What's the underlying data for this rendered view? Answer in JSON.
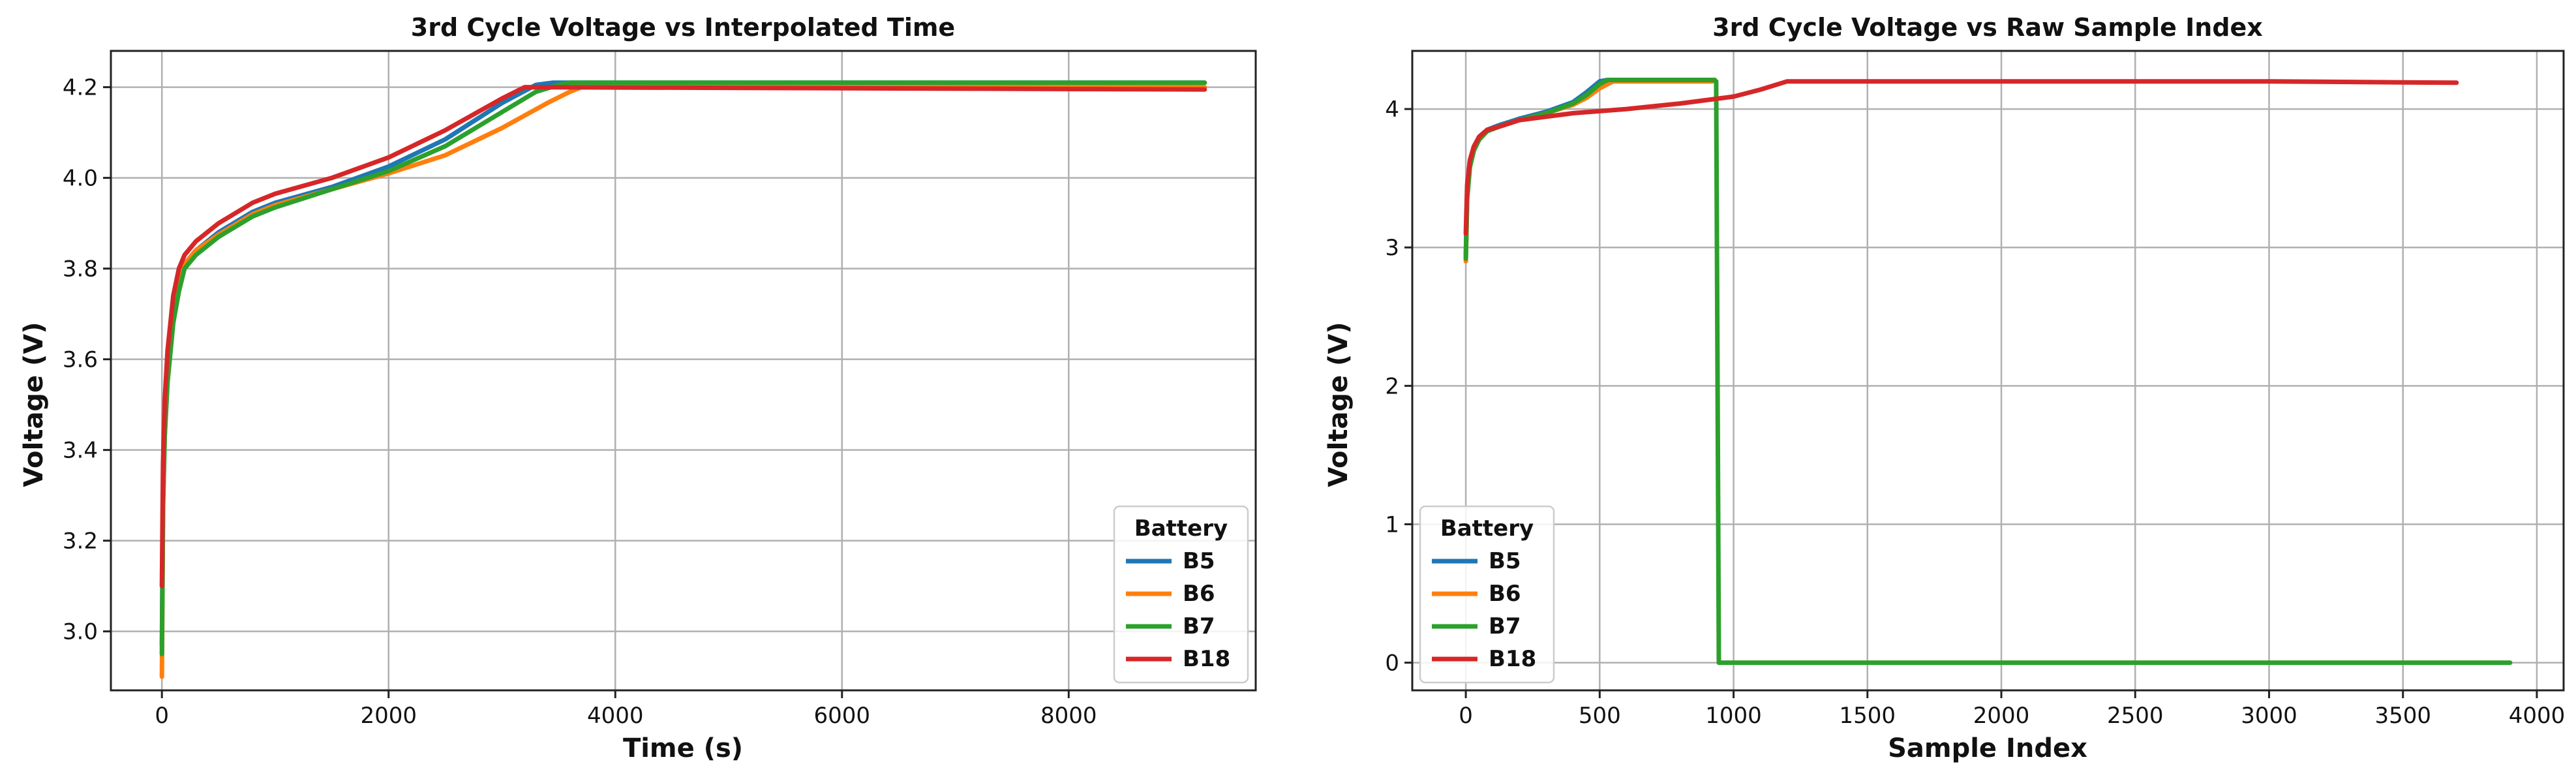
{
  "colors": {
    "B5": "#1f77b4",
    "B6": "#ff7f0e",
    "B7": "#2ca02c",
    "B18": "#d62728"
  },
  "chart_data": [
    {
      "type": "line",
      "title": "3rd Cycle Voltage vs Interpolated Time",
      "xlabel": "Time (s)",
      "ylabel": "Voltage (V)",
      "xlim": [
        -450,
        9650
      ],
      "ylim": [
        2.87,
        4.28
      ],
      "xticks": [
        0,
        2000,
        4000,
        6000,
        8000
      ],
      "yticks": [
        3.0,
        3.2,
        3.4,
        3.6,
        3.8,
        4.0,
        4.2
      ],
      "xtick_labels": [
        "0",
        "2000",
        "4000",
        "6000",
        "8000"
      ],
      "ytick_labels": [
        "3.0",
        "3.2",
        "3.4",
        "3.6",
        "3.8",
        "4.0",
        "4.2"
      ],
      "grid": true,
      "legend": {
        "title": "Battery",
        "placement": "bottom-right"
      },
      "series": [
        {
          "name": "B5",
          "color_key": "B5",
          "x": [
            0,
            10,
            25,
            50,
            100,
            150,
            200,
            300,
            500,
            800,
            1000,
            1500,
            2000,
            2500,
            3000,
            3300,
            3450,
            3600,
            9200
          ],
          "y": [
            2.97,
            3.3,
            3.45,
            3.57,
            3.7,
            3.77,
            3.81,
            3.84,
            3.88,
            3.925,
            3.945,
            3.98,
            4.025,
            4.085,
            4.165,
            4.205,
            4.21,
            4.21,
            4.21
          ]
        },
        {
          "name": "B6",
          "color_key": "B6",
          "x": [
            0,
            10,
            25,
            50,
            100,
            150,
            200,
            300,
            500,
            800,
            1000,
            1500,
            2000,
            2500,
            3000,
            3400,
            3600,
            3700,
            9200
          ],
          "y": [
            2.9,
            3.28,
            3.43,
            3.56,
            3.7,
            3.77,
            3.81,
            3.84,
            3.875,
            3.92,
            3.94,
            3.975,
            4.01,
            4.05,
            4.11,
            4.165,
            4.19,
            4.2,
            4.2
          ]
        },
        {
          "name": "B7",
          "color_key": "B7",
          "x": [
            0,
            10,
            25,
            50,
            100,
            150,
            200,
            300,
            500,
            800,
            1000,
            1500,
            2000,
            2500,
            3000,
            3300,
            3500,
            3600,
            9200
          ],
          "y": [
            2.95,
            3.27,
            3.43,
            3.55,
            3.68,
            3.75,
            3.8,
            3.83,
            3.87,
            3.915,
            3.935,
            3.975,
            4.015,
            4.07,
            4.145,
            4.19,
            4.205,
            4.21,
            4.21
          ]
        },
        {
          "name": "B18",
          "color_key": "B18",
          "x": [
            0,
            10,
            25,
            50,
            100,
            150,
            200,
            300,
            500,
            800,
            1000,
            1500,
            2000,
            2500,
            3000,
            3200,
            9200
          ],
          "y": [
            3.1,
            3.37,
            3.51,
            3.62,
            3.74,
            3.8,
            3.83,
            3.86,
            3.9,
            3.945,
            3.965,
            4.0,
            4.045,
            4.105,
            4.175,
            4.2,
            4.195
          ]
        }
      ]
    },
    {
      "type": "line",
      "title": "3rd Cycle Voltage vs Raw Sample Index",
      "xlabel": "Sample Index",
      "ylabel": "Voltage (V)",
      "xlim": [
        -200,
        4100
      ],
      "ylim": [
        -0.2,
        4.42
      ],
      "xticks": [
        0,
        500,
        1000,
        1500,
        2000,
        2500,
        3000,
        3500,
        4000
      ],
      "yticks": [
        0,
        1,
        2,
        3,
        4
      ],
      "xtick_labels": [
        "0",
        "500",
        "1000",
        "1500",
        "2000",
        "2500",
        "3000",
        "3500",
        "4000"
      ],
      "ytick_labels": [
        "0",
        "1",
        "2",
        "3",
        "4"
      ],
      "grid": true,
      "legend": {
        "title": "Battery",
        "placement": "bottom-left"
      },
      "series": [
        {
          "name": "B5",
          "color_key": "B5",
          "x": [
            0,
            5,
            15,
            30,
            50,
            80,
            120,
            200,
            300,
            400,
            450,
            500,
            530,
            900,
            935
          ],
          "y": [
            2.95,
            3.4,
            3.6,
            3.72,
            3.8,
            3.85,
            3.88,
            3.93,
            3.98,
            4.05,
            4.12,
            4.2,
            4.21,
            4.21,
            4.2
          ]
        },
        {
          "name": "B6",
          "color_key": "B6",
          "x": [
            0,
            5,
            15,
            30,
            50,
            80,
            120,
            200,
            300,
            400,
            450,
            500,
            550,
            920
          ],
          "y": [
            2.9,
            3.35,
            3.58,
            3.7,
            3.78,
            3.84,
            3.87,
            3.92,
            3.97,
            4.03,
            4.08,
            4.15,
            4.2,
            4.2
          ]
        },
        {
          "name": "B7",
          "color_key": "B7",
          "x": [
            0,
            5,
            15,
            30,
            50,
            80,
            120,
            200,
            300,
            400,
            450,
            500,
            530,
            930,
            935,
            945,
            3900
          ],
          "y": [
            2.92,
            3.35,
            3.58,
            3.7,
            3.78,
            3.84,
            3.87,
            3.92,
            3.97,
            4.04,
            4.1,
            4.18,
            4.21,
            4.21,
            4.19,
            0.0,
            0.0
          ]
        },
        {
          "name": "B18",
          "color_key": "B18",
          "x": [
            0,
            5,
            15,
            30,
            50,
            80,
            120,
            200,
            400,
            600,
            800,
            1000,
            1100,
            1200,
            2000,
            3000,
            3700
          ],
          "y": [
            3.1,
            3.45,
            3.63,
            3.73,
            3.8,
            3.85,
            3.87,
            3.92,
            3.97,
            4.0,
            4.04,
            4.09,
            4.14,
            4.2,
            4.2,
            4.2,
            4.19
          ]
        }
      ]
    }
  ]
}
